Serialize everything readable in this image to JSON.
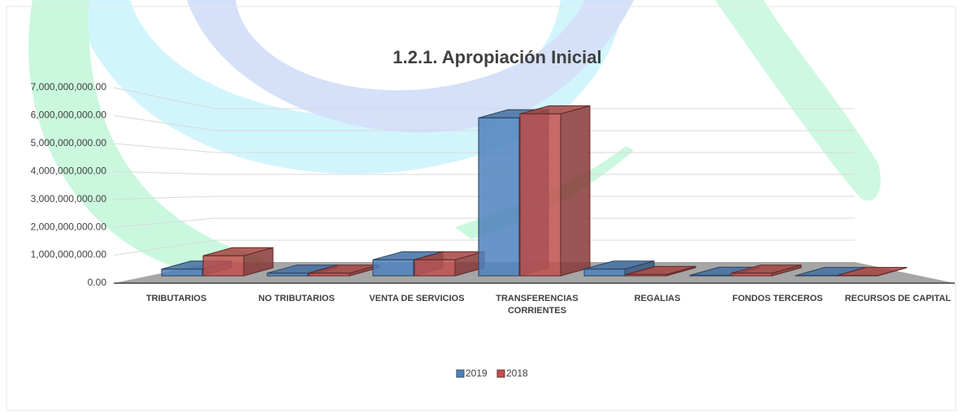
{
  "chart_data": {
    "type": "bar3d",
    "title": "1.2.1. Apropiación Inicial",
    "categories": [
      "TRIBUTARIOS",
      "NO TRIBUTARIOS",
      "VENTA DE SERVICIOS",
      "TRANSFERENCIAS CORRIENTES",
      "REGALIAS",
      "FONDOS TERCEROS",
      "RECURSOS DE CAPITAL"
    ],
    "series": [
      {
        "name": "2019",
        "color": "#4f81bd",
        "values": [
          250000000,
          100000000,
          600000000,
          5900000000,
          250000000,
          20000000,
          10000000
        ]
      },
      {
        "name": "2018",
        "color": "#c0504d",
        "values": [
          750000000,
          100000000,
          600000000,
          6050000000,
          50000000,
          100000000,
          10000000
        ]
      }
    ],
    "ylim": [
      0,
      7000000000
    ],
    "yticks": [
      {
        "value": 0,
        "label": "0.00"
      },
      {
        "value": 1000000000,
        "label": "1,000,000,000.00"
      },
      {
        "value": 2000000000,
        "label": "2,000,000,000.00"
      },
      {
        "value": 3000000000,
        "label": "3,000,000,000.00"
      },
      {
        "value": 4000000000,
        "label": "4,000,000,000.00"
      },
      {
        "value": 5000000000,
        "label": "5,000,000,000.00"
      },
      {
        "value": 6000000000,
        "label": "6,000,000,000.00"
      },
      {
        "value": 7000000000,
        "label": "7,000,000,000.00"
      }
    ],
    "grid": true,
    "legend": "bottom"
  }
}
